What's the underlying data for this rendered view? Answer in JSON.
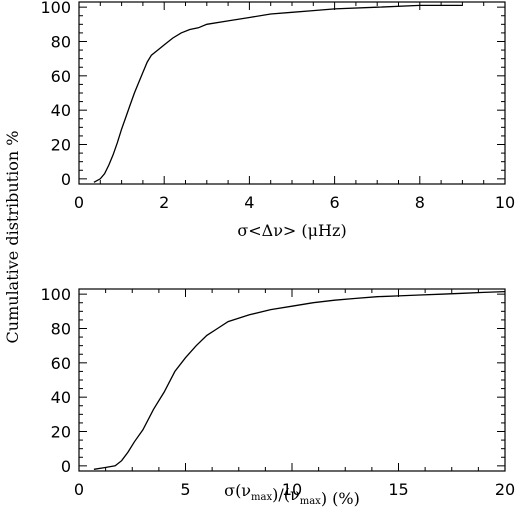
{
  "figure": {
    "ylabel": "Cumulative distribution %"
  },
  "chart_data": [
    {
      "type": "line",
      "xlabel": "σ<Δν> (μHz)",
      "ylabel": "Cumulative distribution %",
      "xlim": [
        0,
        10
      ],
      "ylim": [
        -3,
        103
      ],
      "xticks": [
        0,
        2,
        4,
        6,
        8,
        10
      ],
      "yticks": [
        0,
        20,
        40,
        60,
        80,
        100
      ],
      "grid": false,
      "series": [
        {
          "x": [
            0.35,
            0.5,
            0.6,
            0.7,
            0.8,
            0.9,
            1.0,
            1.1,
            1.2,
            1.3,
            1.4,
            1.5,
            1.6,
            1.7,
            1.8,
            1.9,
            2.0,
            2.2,
            2.4,
            2.6,
            2.8,
            3.0,
            3.5,
            4.0,
            4.5,
            5.0,
            5.5,
            6.0,
            7.0,
            8.0,
            9.0
          ],
          "y": [
            -2,
            0,
            3,
            8,
            14,
            21,
            29,
            36,
            43,
            50,
            56,
            62,
            68,
            72,
            74,
            76,
            78,
            82,
            85,
            87,
            88,
            90,
            92,
            94,
            96,
            97,
            98,
            99,
            100,
            101,
            101
          ]
        }
      ]
    },
    {
      "type": "line",
      "xlabel": "σ(ν_max)/(ν_max)   (%)",
      "ylabel": "Cumulative distribution %",
      "xlim": [
        0,
        20
      ],
      "ylim": [
        -3,
        103
      ],
      "xticks": [
        0,
        5,
        10,
        15,
        20
      ],
      "yticks": [
        0,
        20,
        40,
        60,
        80,
        100
      ],
      "grid": false,
      "series": [
        {
          "x": [
            0.7,
            1.2,
            1.7,
            2.0,
            2.3,
            2.6,
            3.0,
            3.5,
            4.0,
            4.5,
            5.0,
            5.5,
            6.0,
            6.5,
            7.0,
            8.0,
            9.0,
            10.0,
            11.0,
            12.0,
            13.0,
            14.0,
            15.0,
            16.0,
            17.0,
            18.0,
            19.0,
            20.0
          ],
          "y": [
            -2,
            -1,
            0,
            3,
            8,
            14,
            21,
            33,
            43,
            55,
            63,
            70,
            76,
            80,
            84,
            88,
            91,
            93,
            95,
            96.5,
            97.5,
            98.5,
            99,
            99.5,
            100,
            100.5,
            101,
            101.5
          ]
        }
      ]
    }
  ]
}
